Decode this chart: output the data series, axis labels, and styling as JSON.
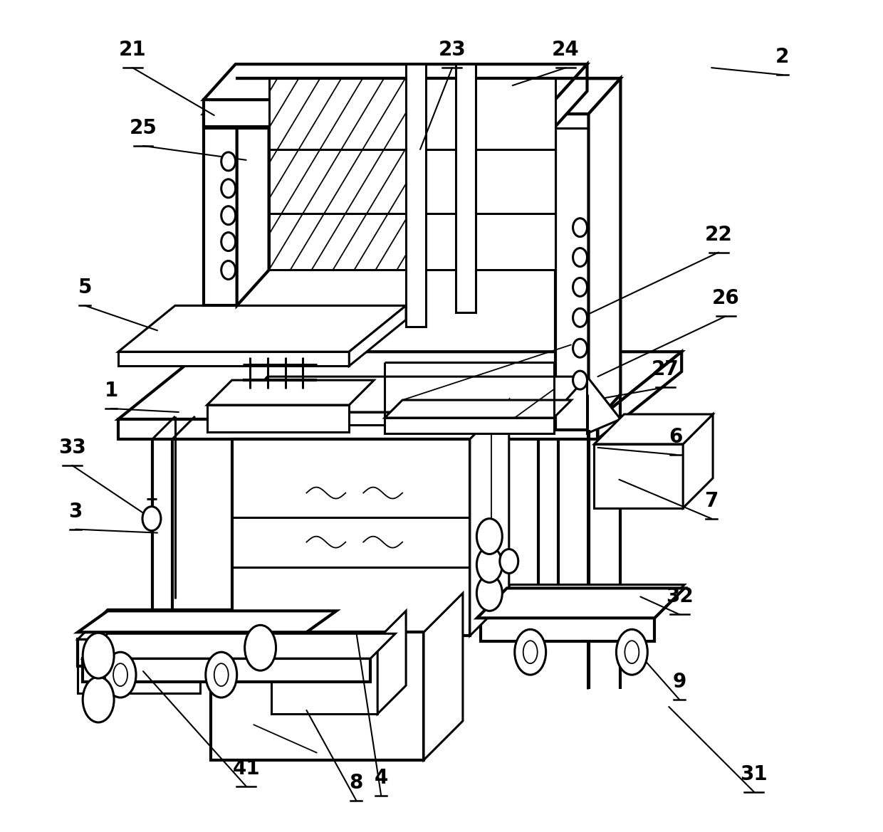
{
  "bg_color": "#ffffff",
  "line_color": "#000000",
  "lw": 2.2,
  "lw_thin": 1.3,
  "lw_thick": 3.0,
  "label_fontsize": 20,
  "figsize": [
    12.4,
    11.69
  ],
  "dpi": 100
}
